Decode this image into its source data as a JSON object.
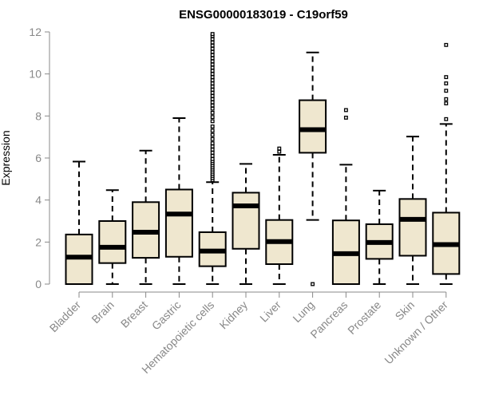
{
  "chart_data": {
    "type": "box",
    "title": "ENSG00000183019 - C19orf59",
    "xlabel": "",
    "ylabel": "Expression",
    "ylim": [
      0,
      12
    ],
    "yticks": [
      0,
      2,
      4,
      6,
      8,
      10,
      12
    ],
    "grid": false,
    "legend": "none",
    "colors": {
      "box_fill": "#efe7cf",
      "box_stroke": "#000000",
      "axis": "#888888",
      "tick_label": "#888888"
    },
    "categories": [
      "Bladder",
      "Brain",
      "Breast",
      "Gastric",
      "Hematopoietic cells",
      "Kidney",
      "Liver",
      "Lung",
      "Pancreas",
      "Prostate",
      "Skin",
      "Unknown / Other"
    ],
    "boxes": [
      {
        "category": "Bladder",
        "whisker_low": 0,
        "q1": 0,
        "median": 1.28,
        "q3": 2.36,
        "whisker_high": 5.83,
        "outliers": []
      },
      {
        "category": "Brain",
        "whisker_low": 0,
        "q1": 1.0,
        "median": 1.75,
        "q3": 3.0,
        "whisker_high": 4.47,
        "outliers": []
      },
      {
        "category": "Breast",
        "whisker_low": 0,
        "q1": 1.25,
        "median": 2.47,
        "q3": 3.9,
        "whisker_high": 6.35,
        "outliers": []
      },
      {
        "category": "Gastric",
        "whisker_low": 0,
        "q1": 1.3,
        "median": 3.33,
        "q3": 4.5,
        "whisker_high": 7.9,
        "outliers": []
      },
      {
        "category": "Hematopoietic cells",
        "whisker_low": 0,
        "q1": 0.85,
        "median": 1.57,
        "q3": 2.47,
        "whisker_high": 4.85,
        "outliers": [
          4.95,
          5.05,
          5.15,
          5.25,
          5.35,
          5.45,
          5.55,
          5.65,
          5.75,
          5.85,
          5.95,
          6.1,
          6.25,
          6.4,
          6.55,
          6.7,
          6.9,
          7.1,
          7.3,
          7.5,
          7.75,
          7.95,
          8.15,
          8.35,
          8.5,
          8.65,
          8.8,
          8.95,
          9.1,
          9.25,
          9.4,
          9.55,
          9.7,
          9.85,
          10.0,
          10.15,
          10.3,
          10.45,
          10.6,
          10.75,
          10.9,
          11.05,
          11.2,
          11.35,
          11.5,
          11.65,
          11.8,
          11.9
        ]
      },
      {
        "category": "Kidney",
        "whisker_low": 0,
        "q1": 1.68,
        "median": 3.72,
        "q3": 4.35,
        "whisker_high": 5.72,
        "outliers": []
      },
      {
        "category": "Liver",
        "whisker_low": 0,
        "q1": 0.95,
        "median": 2.02,
        "q3": 3.05,
        "whisker_high": 6.15,
        "outliers": [
          6.3,
          6.45
        ]
      },
      {
        "category": "Lung",
        "whisker_low": 3.05,
        "q1": 6.25,
        "median": 7.35,
        "q3": 8.75,
        "whisker_high": 11.02,
        "outliers": [
          0
        ]
      },
      {
        "category": "Pancreas",
        "whisker_low": 0,
        "q1": 0,
        "median": 1.45,
        "q3": 3.03,
        "whisker_high": 5.68,
        "outliers": [
          7.92,
          8.28
        ]
      },
      {
        "category": "Prostate",
        "whisker_low": 0,
        "q1": 1.2,
        "median": 1.98,
        "q3": 2.85,
        "whisker_high": 4.45,
        "outliers": []
      },
      {
        "category": "Skin",
        "whisker_low": 0,
        "q1": 1.35,
        "median": 3.08,
        "q3": 4.05,
        "whisker_high": 7.02,
        "outliers": []
      },
      {
        "category": "Unknown / Other",
        "whisker_low": 0,
        "q1": 0.48,
        "median": 1.88,
        "q3": 3.4,
        "whisker_high": 7.62,
        "outliers": [
          7.85,
          8.6,
          8.8,
          9.2,
          9.55,
          9.85,
          11.38
        ]
      }
    ]
  }
}
